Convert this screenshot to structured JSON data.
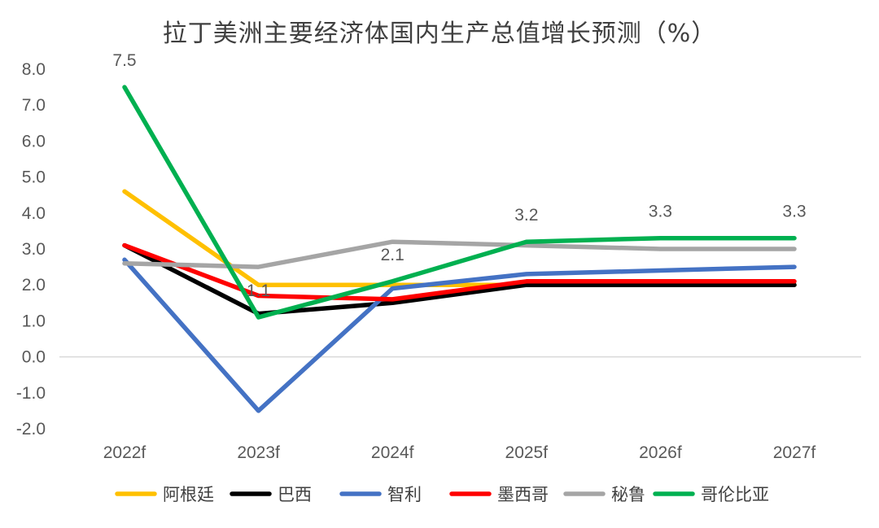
{
  "chart_data": {
    "type": "line",
    "title": "拉丁美洲主要经济体国内生产总值增长预测（%）",
    "xlabel": "",
    "ylabel": "",
    "categories": [
      "2022f",
      "2023f",
      "2024f",
      "2025f",
      "2026f",
      "2027f"
    ],
    "ylim": [
      -2.0,
      8.0
    ],
    "yticks": [
      "8.0",
      "7.0",
      "6.0",
      "5.0",
      "4.0",
      "3.0",
      "2.0",
      "1.0",
      "0.0",
      "-1.0",
      "-2.0"
    ],
    "legend_position": "bottom",
    "grid": false,
    "series": [
      {
        "name": "阿根廷",
        "color": "#FFC000",
        "values": [
          4.6,
          2.0,
          2.0,
          2.0,
          2.0,
          2.0
        ]
      },
      {
        "name": "巴西",
        "color": "#000000",
        "values": [
          3.1,
          1.2,
          1.5,
          2.0,
          2.0,
          2.0
        ]
      },
      {
        "name": "智利",
        "color": "#4472C4",
        "values": [
          2.7,
          -1.5,
          1.9,
          2.3,
          2.4,
          2.5
        ]
      },
      {
        "name": "墨西哥",
        "color": "#FF0000",
        "values": [
          3.1,
          1.7,
          1.6,
          2.1,
          2.1,
          2.1
        ]
      },
      {
        "name": "秘鲁",
        "color": "#A5A5A5",
        "values": [
          2.6,
          2.5,
          3.2,
          3.1,
          3.0,
          3.0
        ]
      },
      {
        "name": "哥伦比亚",
        "color": "#00B050",
        "values": [
          7.5,
          1.1,
          2.1,
          3.2,
          3.3,
          3.3
        ]
      }
    ],
    "data_labels": [
      {
        "series": "哥伦比亚",
        "index": 0,
        "text": "7.5"
      },
      {
        "series": "哥伦比亚",
        "index": 1,
        "text": "1.1"
      },
      {
        "series": "哥伦比亚",
        "index": 2,
        "text": "2.1"
      },
      {
        "series": "哥伦比亚",
        "index": 3,
        "text": "3.2"
      },
      {
        "series": "哥伦比亚",
        "index": 4,
        "text": "3.3"
      },
      {
        "series": "哥伦比亚",
        "index": 5,
        "text": "3.3"
      }
    ]
  }
}
